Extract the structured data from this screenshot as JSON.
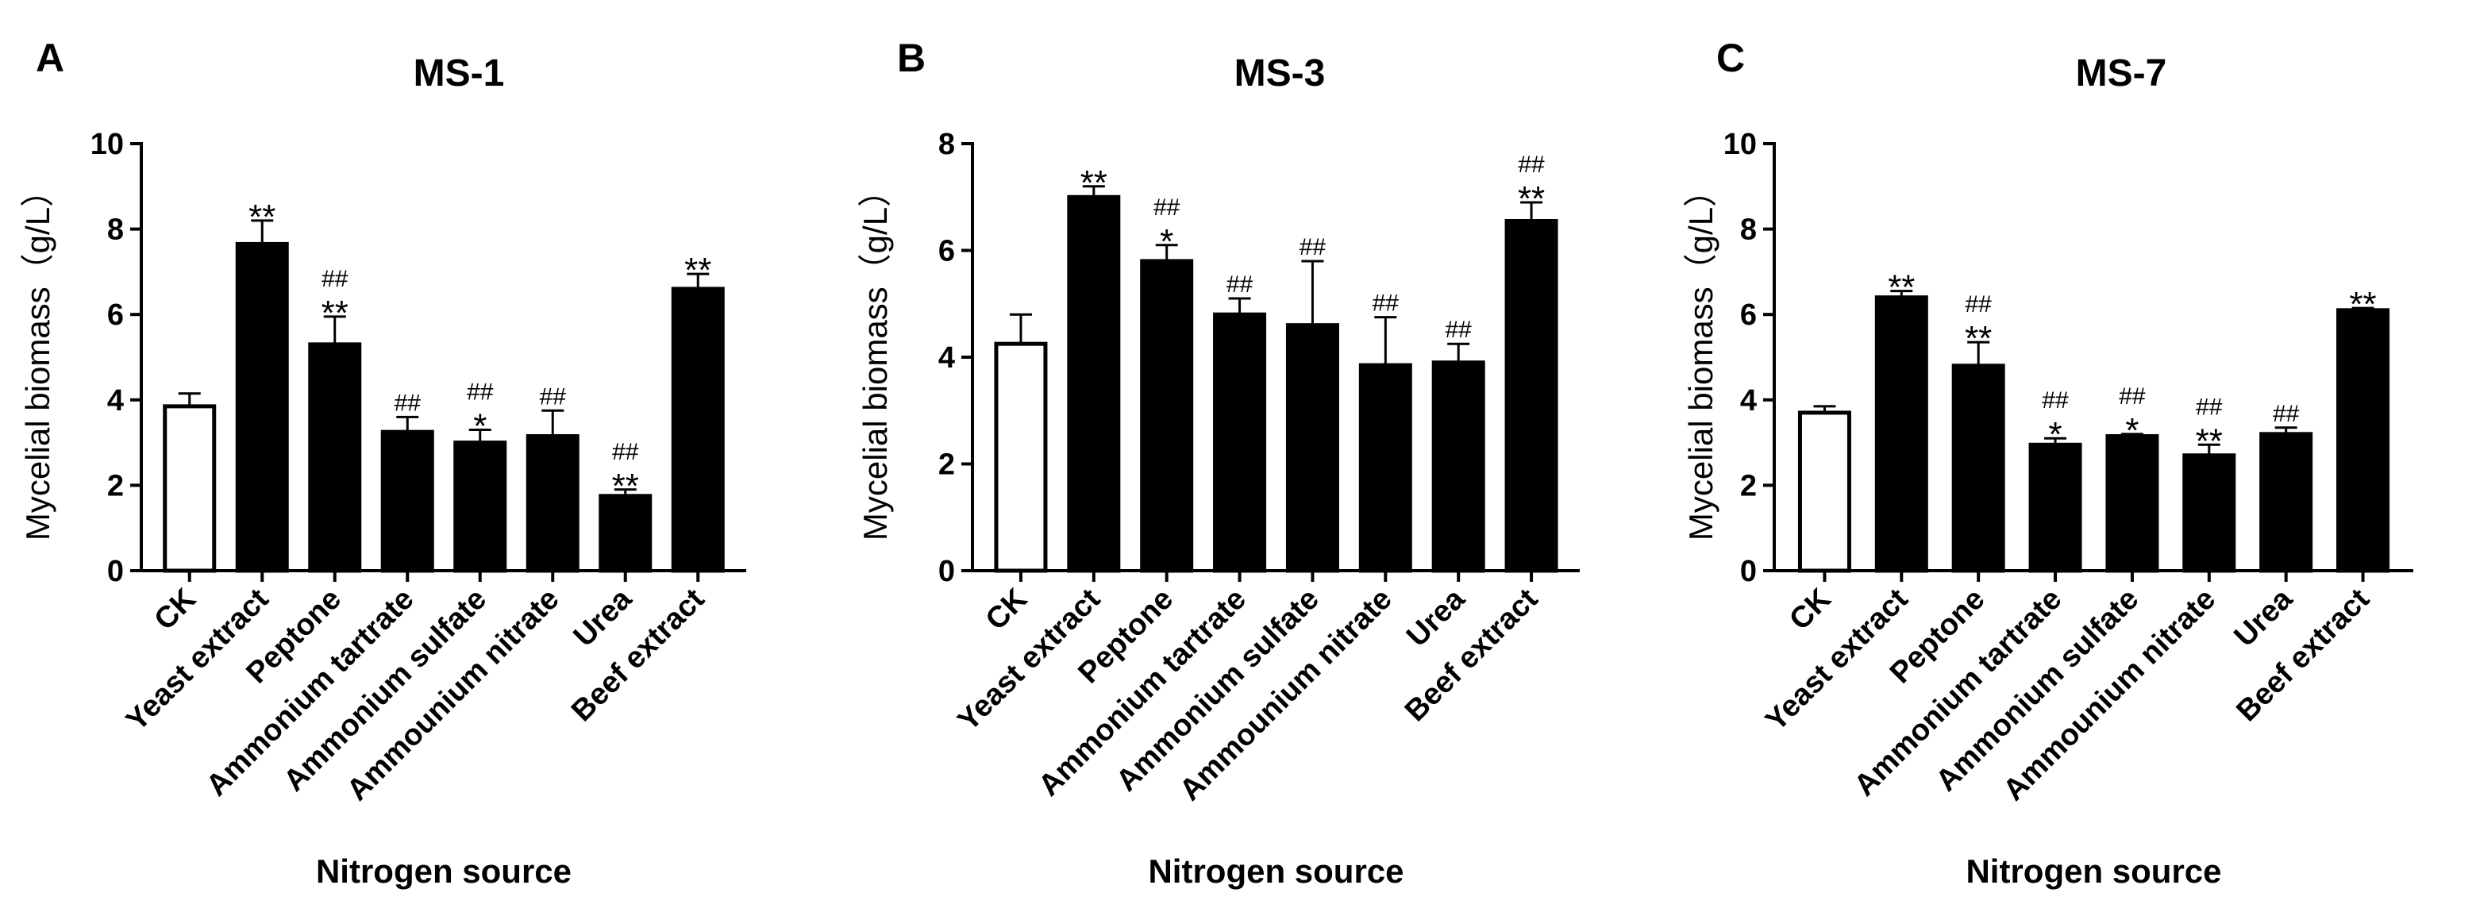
{
  "chart_data": [
    {
      "type": "bar",
      "panel_label": "A",
      "title": "MS-1",
      "xlabel": "Nitrogen source",
      "ylabel": "Mycelial biomass（g/L）",
      "ylim": [
        0,
        10
      ],
      "yticks": [
        "0",
        "2",
        "4",
        "6",
        "8",
        "10"
      ],
      "categories": [
        "CK",
        "Yeast extract",
        "Peptone",
        "Ammonium tartrate",
        "Ammonium sulfate",
        "Ammounium nitrate",
        "Urea",
        "Beef extract"
      ],
      "values": [
        3.85,
        7.65,
        5.3,
        3.25,
        3.0,
        3.15,
        1.75,
        6.6
      ],
      "errors": [
        0.3,
        0.55,
        0.65,
        0.35,
        0.3,
        0.6,
        0.15,
        0.35
      ],
      "stars": [
        "",
        "**",
        "**",
        "",
        "*",
        "",
        "**",
        "**"
      ],
      "hashes": [
        "",
        "",
        "##",
        "##",
        "##",
        "##",
        "##",
        ""
      ],
      "bar_fill": [
        "#ffffff",
        "#000000",
        "#000000",
        "#000000",
        "#000000",
        "#000000",
        "#000000",
        "#000000"
      ],
      "grid": false
    },
    {
      "type": "bar",
      "panel_label": "B",
      "title": "MS-3",
      "xlabel": "Nitrogen source",
      "ylabel": "Mycelial biomass（g/L）",
      "ylim": [
        0,
        8
      ],
      "yticks": [
        "0",
        "2",
        "4",
        "6",
        "8"
      ],
      "categories": [
        "CK",
        "Yeast extract",
        "Peptone",
        "Ammonium tartrate",
        "Ammonium sulfate",
        "Ammounium nitrate",
        "Urea",
        "Beef extract"
      ],
      "values": [
        4.25,
        7.0,
        5.8,
        4.8,
        4.6,
        3.85,
        3.9,
        6.55
      ],
      "errors": [
        0.55,
        0.2,
        0.3,
        0.3,
        1.2,
        0.9,
        0.35,
        0.35
      ],
      "stars": [
        "",
        "**",
        "*",
        "",
        "",
        "",
        "",
        "**"
      ],
      "hashes": [
        "",
        "",
        "##",
        "##",
        "##",
        "##",
        "##",
        "##"
      ],
      "bar_fill": [
        "#ffffff",
        "#000000",
        "#000000",
        "#000000",
        "#000000",
        "#000000",
        "#000000",
        "#000000"
      ],
      "grid": false
    },
    {
      "type": "bar",
      "panel_label": "C",
      "title": "MS-7",
      "xlabel": "Nitrogen source",
      "ylabel": "Mycelial biomass（g/L）",
      "ylim": [
        0,
        10
      ],
      "yticks": [
        "0",
        "2",
        "4",
        "6",
        "8",
        "10"
      ],
      "categories": [
        "CK",
        "Yeast extract",
        "Peptone",
        "Ammonium tartrate",
        "Ammonium sulfate",
        "Ammounium nitrate",
        "Urea",
        "Beef extract"
      ],
      "values": [
        3.7,
        6.4,
        4.8,
        2.95,
        3.15,
        2.7,
        3.2,
        6.1
      ],
      "errors": [
        0.15,
        0.15,
        0.55,
        0.15,
        0.05,
        0.25,
        0.15,
        0.05
      ],
      "stars": [
        "",
        "**",
        "**",
        "*",
        "*",
        "**",
        "",
        "**"
      ],
      "hashes": [
        "",
        "",
        "##",
        "##",
        "##",
        "##",
        "##",
        ""
      ],
      "bar_fill": [
        "#ffffff",
        "#000000",
        "#000000",
        "#000000",
        "#000000",
        "#000000",
        "#000000",
        "#000000"
      ],
      "grid": false
    }
  ]
}
